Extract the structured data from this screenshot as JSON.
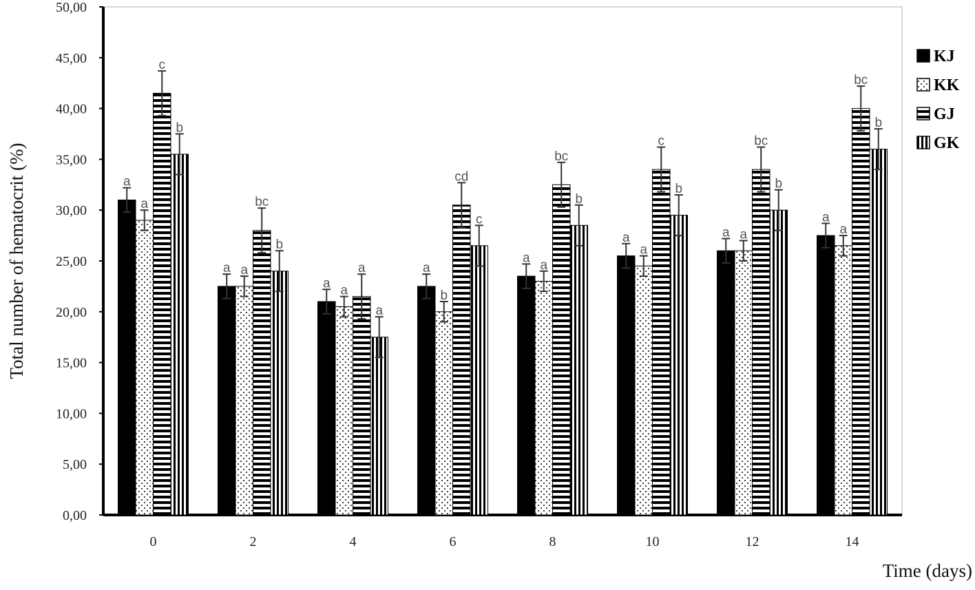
{
  "chart_data": {
    "type": "bar",
    "title": "",
    "xlabel": "Time (days)",
    "ylabel": "Total number of hematocrit (%)",
    "categories": [
      "0",
      "2",
      "4",
      "6",
      "8",
      "10",
      "12",
      "14"
    ],
    "ylim": [
      0,
      50
    ],
    "yticks": [
      "0,00",
      "5,00",
      "10,00",
      "15,00",
      "20,00",
      "25,00",
      "30,00",
      "35,00",
      "40,00",
      "45,00",
      "50,00"
    ],
    "legend_position": "right",
    "grid": false,
    "series": [
      {
        "name": "KJ",
        "pattern": "solid",
        "values": [
          31.0,
          22.5,
          21.0,
          22.5,
          23.5,
          25.5,
          26.0,
          27.5
        ],
        "errors": [
          1.2,
          1.2,
          1.2,
          1.2,
          1.2,
          1.2,
          1.2,
          1.2
        ],
        "sig_labels": [
          "a",
          "a",
          "a",
          "a",
          "a",
          "a",
          "a",
          "a"
        ]
      },
      {
        "name": "KK",
        "pattern": "dotted",
        "values": [
          29.0,
          22.5,
          20.5,
          20.0,
          23.0,
          24.5,
          26.0,
          26.5
        ],
        "errors": [
          1.0,
          1.0,
          1.0,
          1.0,
          1.0,
          1.0,
          1.0,
          1.0
        ],
        "sig_labels": [
          "a",
          "a",
          "a",
          "b",
          "a",
          "a",
          "a",
          "a"
        ]
      },
      {
        "name": "GJ",
        "pattern": "horizontal-stripes",
        "values": [
          41.5,
          28.0,
          21.5,
          30.5,
          32.5,
          34.0,
          34.0,
          40.0
        ],
        "errors": [
          2.2,
          2.2,
          2.2,
          2.2,
          2.2,
          2.2,
          2.2,
          2.2
        ],
        "sig_labels": [
          "c",
          "bc",
          "a",
          "cd",
          "bc",
          "c",
          "bc",
          "bc"
        ]
      },
      {
        "name": "GK",
        "pattern": "vertical-stripes",
        "values": [
          35.5,
          24.0,
          17.5,
          26.5,
          28.5,
          29.5,
          30.0,
          36.0
        ],
        "errors": [
          2.0,
          2.0,
          2.0,
          2.0,
          2.0,
          2.0,
          2.0,
          2.0
        ],
        "sig_labels": [
          "b",
          "b",
          "a",
          "c",
          "b",
          "b",
          "b",
          "b"
        ]
      }
    ]
  }
}
